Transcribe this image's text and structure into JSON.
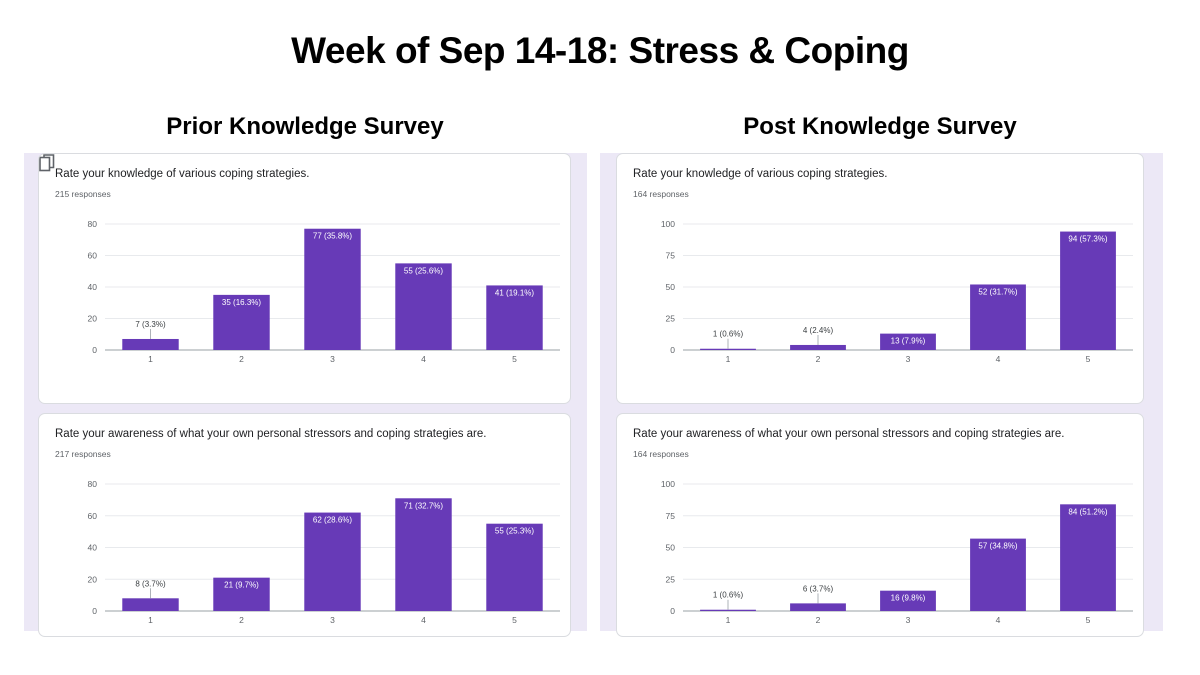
{
  "title": "Week of Sep 14-18: Stress & Coping",
  "sections": {
    "prior": "Prior Knowledge Survey",
    "post": "Post Knowledge Survey"
  },
  "colors": {
    "bar": "#673ab7",
    "panel": "#ece8f6"
  },
  "chart_data": [
    {
      "type": "bar",
      "id": "prior-1",
      "title": "Rate your knowledge of various coping strategies.",
      "responses": "215 responses",
      "categories": [
        "1",
        "2",
        "3",
        "4",
        "5"
      ],
      "values": [
        7,
        35,
        77,
        55,
        41
      ],
      "labels": [
        "7 (3.3%)",
        "35 (16.3%)",
        "77 (35.8%)",
        "55 (25.6%)",
        "41 (19.1%)"
      ],
      "yticks": [
        0,
        20,
        40,
        60,
        80
      ],
      "ylim": [
        0,
        80
      ]
    },
    {
      "type": "bar",
      "id": "prior-2",
      "title": "Rate your awareness of what your own personal stressors and coping strategies are.",
      "responses": "217 responses",
      "categories": [
        "1",
        "2",
        "3",
        "4",
        "5"
      ],
      "values": [
        8,
        21,
        62,
        71,
        55
      ],
      "labels": [
        "8 (3.7%)",
        "21 (9.7%)",
        "62 (28.6%)",
        "71 (32.7%)",
        "55 (25.3%)"
      ],
      "yticks": [
        0,
        20,
        40,
        60,
        80
      ],
      "ylim": [
        0,
        80
      ]
    },
    {
      "type": "bar",
      "id": "post-1",
      "title": "Rate your knowledge of various coping strategies.",
      "responses": "164 responses",
      "categories": [
        "1",
        "2",
        "3",
        "4",
        "5"
      ],
      "values": [
        1,
        4,
        13,
        52,
        94
      ],
      "labels": [
        "1 (0.6%)",
        "4 (2.4%)",
        "13 (7.9%)",
        "52 (31.7%)",
        "94 (57.3%)"
      ],
      "yticks": [
        0,
        25,
        50,
        75,
        100
      ],
      "ylim": [
        0,
        100
      ]
    },
    {
      "type": "bar",
      "id": "post-2",
      "title": "Rate your awareness of what your own personal stressors and coping strategies are.",
      "responses": "164 responses",
      "categories": [
        "1",
        "2",
        "3",
        "4",
        "5"
      ],
      "values": [
        1,
        6,
        16,
        57,
        84
      ],
      "labels": [
        "1 (0.6%)",
        "6 (3.7%)",
        "16 (9.8%)",
        "57 (34.8%)",
        "84 (51.2%)"
      ],
      "yticks": [
        0,
        25,
        50,
        75,
        100
      ],
      "ylim": [
        0,
        100
      ]
    }
  ]
}
